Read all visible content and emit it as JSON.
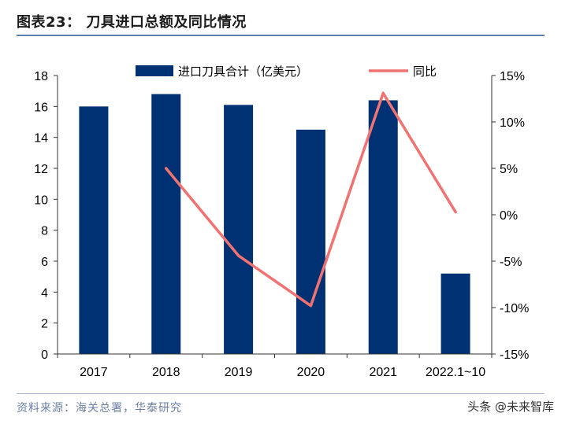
{
  "figure": {
    "title": "图表23： 刀具进口总额及同比情况",
    "source": "资料来源：海关总署，华泰研究",
    "watermark": "头条 @未来智库"
  },
  "colors": {
    "bar": "#003172",
    "line": "#f07372",
    "axis": "#333333",
    "rule": "#5b7fb0"
  },
  "chart_data": {
    "type": "bar",
    "title": "刀具进口总额及同比情况",
    "categories": [
      "2017",
      "2018",
      "2019",
      "2020",
      "2021",
      "2022.1~10"
    ],
    "series": [
      {
        "name": "进口刀具合计（亿美元）",
        "type": "bar",
        "axis": "left",
        "values": [
          16.0,
          16.8,
          16.1,
          14.5,
          16.4,
          5.2
        ]
      },
      {
        "name": "同比",
        "type": "line",
        "axis": "right",
        "values": [
          null,
          5.0,
          -4.4,
          -9.8,
          13.1,
          0.3
        ]
      }
    ],
    "ylim_left": [
      0,
      18
    ],
    "yticks_left": [
      "0",
      "2",
      "4",
      "6",
      "8",
      "10",
      "12",
      "14",
      "16",
      "18"
    ],
    "ylim_right": [
      -15,
      15
    ],
    "yticks_right": [
      "-15%",
      "-10%",
      "-5%",
      "0%",
      "5%",
      "10%",
      "15%"
    ],
    "legend_position": "top",
    "grid": false
  }
}
